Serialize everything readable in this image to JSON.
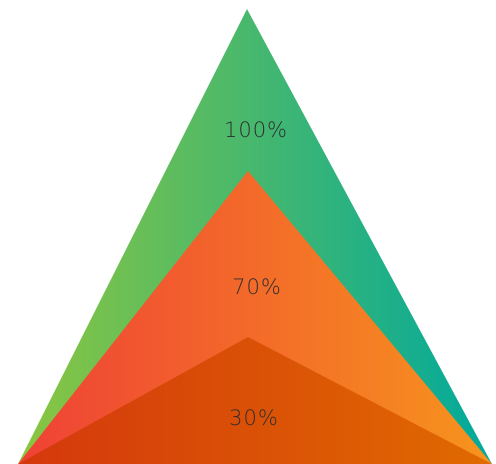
{
  "diagram": {
    "layers": [
      {
        "label": "100%",
        "colors": {
          "left": "#8cc63f",
          "right": "#00a99d"
        }
      },
      {
        "label": "70%",
        "colors": {
          "left": "#ef4136",
          "right": "#f7941d"
        }
      },
      {
        "label": "30%",
        "colors": {
          "left": "#d4380d",
          "right": "#e06a00"
        }
      }
    ]
  }
}
